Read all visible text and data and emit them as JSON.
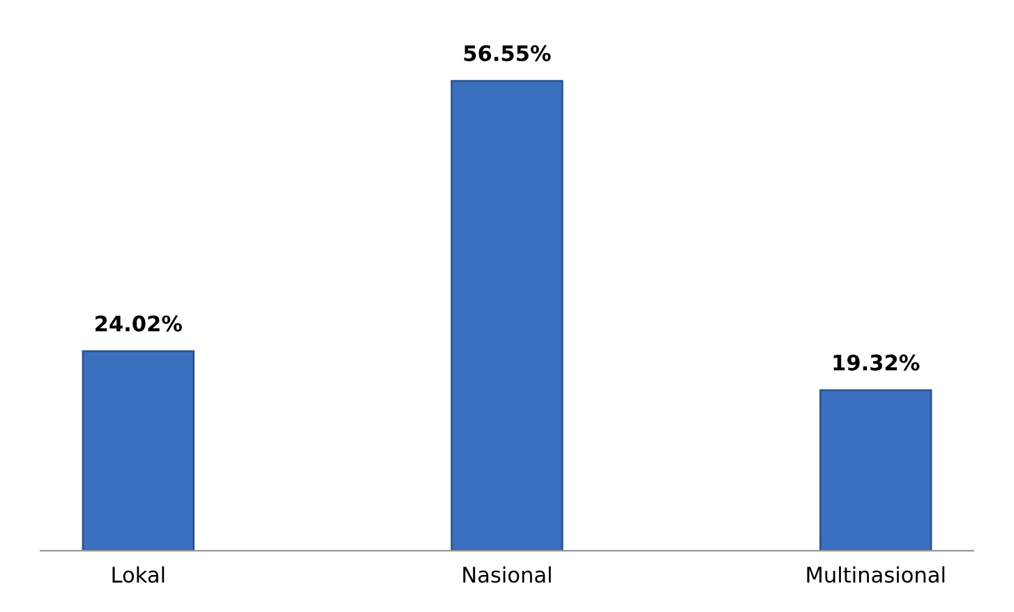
{
  "chart_data": {
    "type": "bar",
    "categories": [
      "Lokal",
      "Nasional",
      "Multinasional"
    ],
    "values": [
      24.02,
      56.55,
      19.32
    ],
    "color": "#3b6fbf",
    "value_labels": [
      "24.02%",
      "56.55%",
      "19.32%"
    ],
    "grid": false,
    "legend": false
  }
}
